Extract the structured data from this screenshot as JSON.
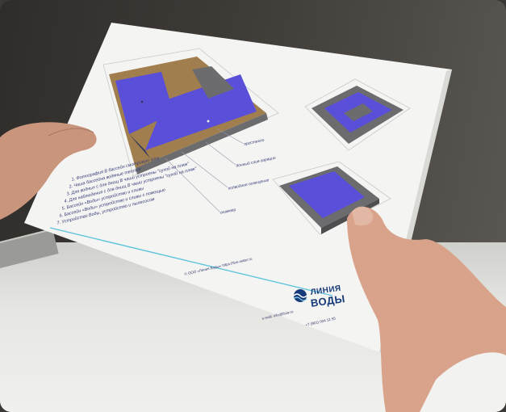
{
  "notes": [
    "1. Фотография В бассейн смотровую зону",
    "2. Чаша бассейна водяные теплые",
    "3. Для водных с для днищ В чаши устроены \"сухой на пляж\"",
    "4. Для наблюдения с для днищ В чаши устроены \"сухой на пляж\"",
    "5. Бассейн «Воды» устройство и сливы",
    "6. Бассейн «Воды» устройство и сливы с помощью",
    "7. Устройство Воды, устройство и пылесосом"
  ],
  "callouts": [
    "оргстекло",
    "донный слив аэрации",
    "подводное освещение",
    "скиммер"
  ],
  "brand": {
    "line1": "ЛИНИЯ",
    "line2": "ВОДЫ"
  },
  "footer": {
    "copyright": "© ООО «Линия Воды» https://line-water.ru",
    "email": "e-mail: info@linia.ru",
    "phone": "+7 (901) 004 12 55"
  },
  "colors": {
    "pool_water": "#5a4fd9",
    "wood_deck": "#a07e4e",
    "concrete": "#6c6c6e",
    "brand_blue": "#173a78",
    "paper": "#f4f4f2"
  }
}
